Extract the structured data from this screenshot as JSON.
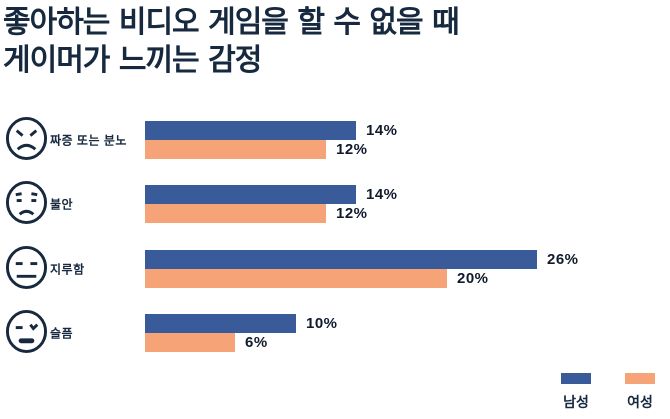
{
  "title": {
    "line1": "좋아하는 비디오 게임을 할 수 없을 때",
    "line2": "게이머가 느끼는 감정"
  },
  "colors": {
    "male_bar": "#3a5b99",
    "female_bar": "#f5a377",
    "title_text": "#16293e",
    "value_text": "#101b2c",
    "background": "#ffffff"
  },
  "chart_data": {
    "type": "bar",
    "orientation": "horizontal",
    "title": "좋아하는 비디오 게임을 할 수 없을 때 게이머가 느끼는 감정",
    "categories": [
      "짜증 또는 분노",
      "불안",
      "지루함",
      "슬픔"
    ],
    "category_icons": [
      "angry-face",
      "anxious-face",
      "neutral-face",
      "sad-face"
    ],
    "series": [
      {
        "name": "남성",
        "color": "#3a5b99",
        "values": [
          14,
          14,
          26,
          10
        ]
      },
      {
        "name": "여성",
        "color": "#f5a377",
        "values": [
          12,
          12,
          20,
          6
        ]
      }
    ],
    "value_suffix": "%",
    "xlim": [
      0,
      26
    ],
    "grid": false,
    "data_labels": true,
    "legend_position": "bottom-right"
  }
}
